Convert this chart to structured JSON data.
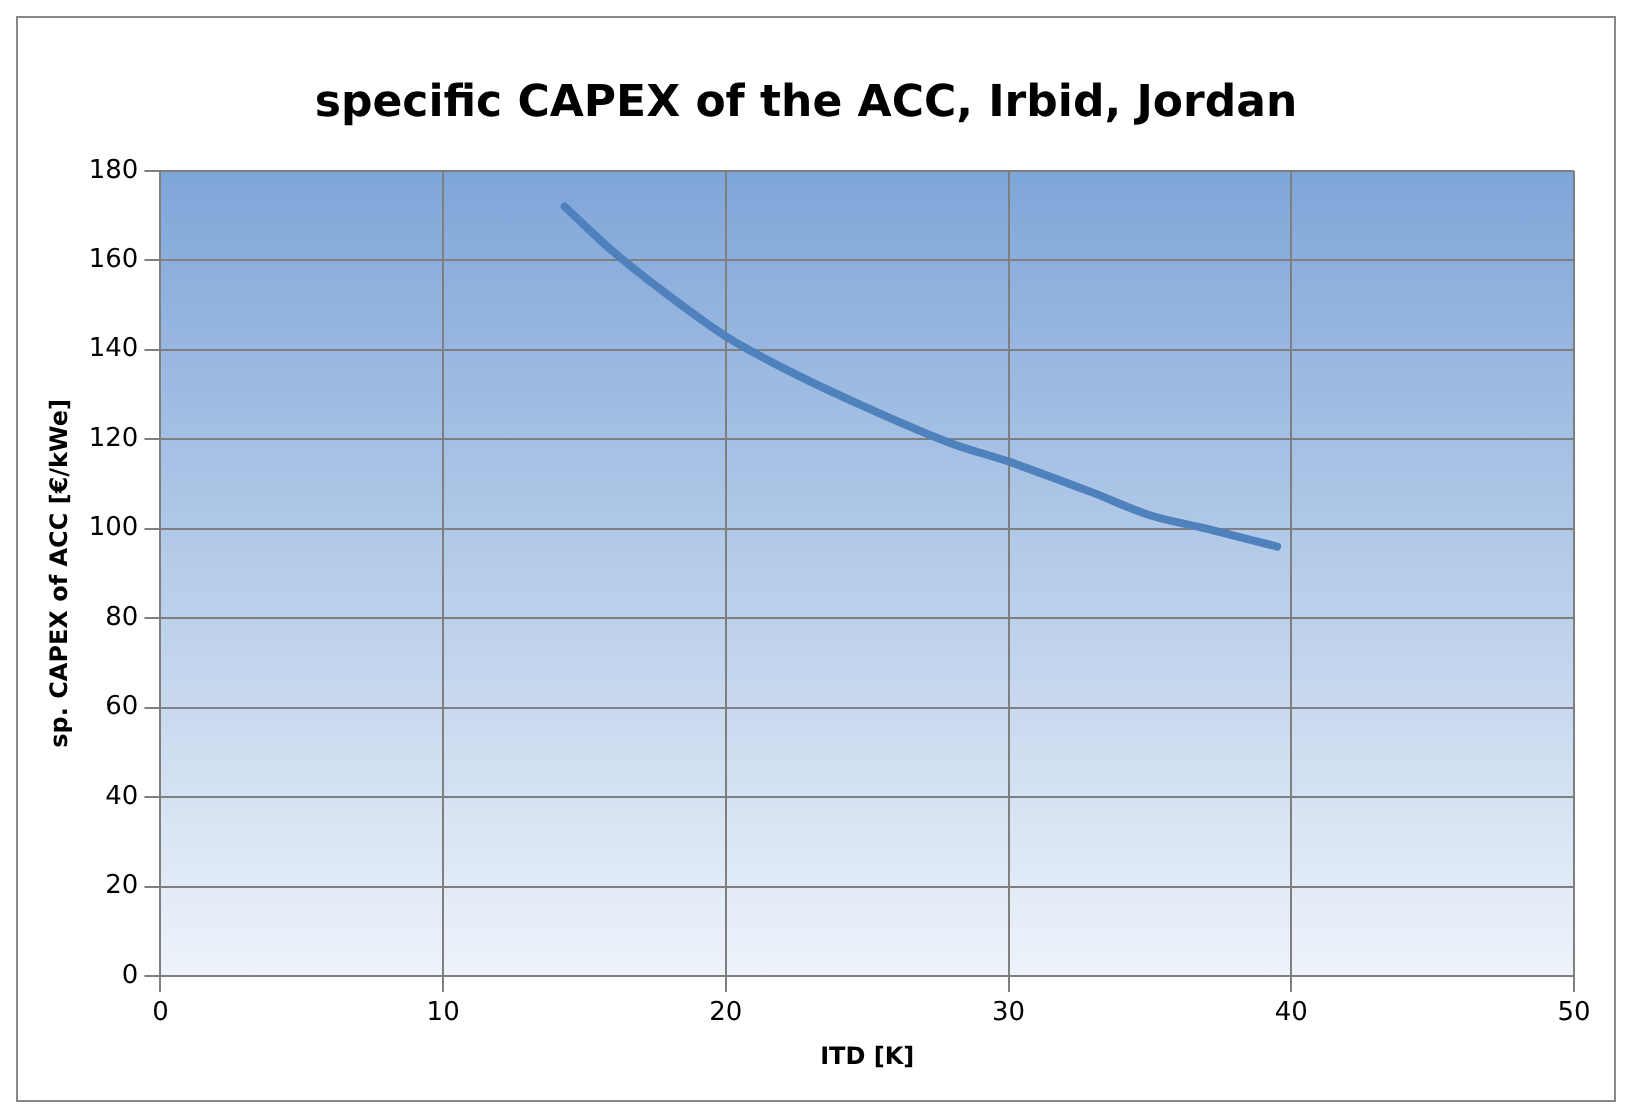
{
  "chart_data": {
    "type": "line",
    "title": "specific CAPEX of the ACC, Irbid, Jordan",
    "xlabel": "ITD [K]",
    "ylabel": "sp. CAPEX of ACC [€/kWe]",
    "series": [
      {
        "color": "#4f81bd",
        "x": [
          14.3,
          16,
          18,
          20,
          22,
          25,
          28,
          30,
          33,
          35,
          37,
          39.5
        ],
        "values": [
          172,
          162,
          152,
          143,
          136,
          127,
          119,
          115,
          108,
          103,
          100,
          96
        ]
      }
    ],
    "xlim": [
      0,
      50
    ],
    "xticks": [
      0,
      10,
      20,
      30,
      40,
      50
    ],
    "ylim": [
      0,
      180
    ],
    "yticks": [
      0,
      20,
      40,
      60,
      80,
      100,
      120,
      140,
      160,
      180
    ],
    "grid": true,
    "legend": false,
    "marker": "none",
    "line_style": "solid"
  }
}
